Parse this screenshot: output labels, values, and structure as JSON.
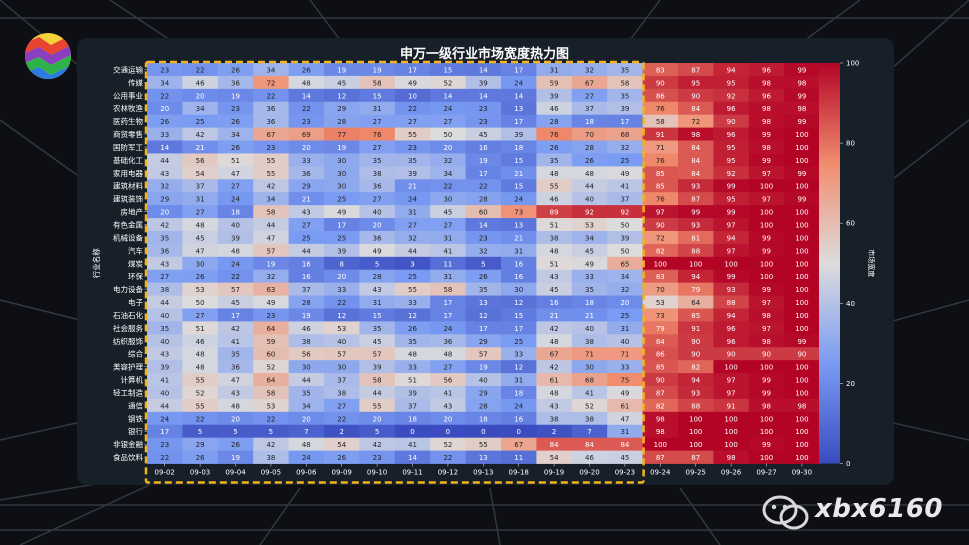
{
  "chart_data": {
    "type": "heatmap",
    "title": "申万一级行业市场宽度热力图",
    "ylabel": "行业名称",
    "colorbar_label": "市场宽度",
    "colorbar_ticks": [
      0,
      20,
      40,
      60,
      80,
      100
    ],
    "vmin": 0,
    "vmax": 100,
    "colors": {
      "low": "#3a4cc0",
      "mid": "#dddcdc",
      "high": "#b40426"
    },
    "columns": [
      "09-02",
      "09-03",
      "09-04",
      "09-05",
      "09-06",
      "09-09",
      "09-10",
      "09-11",
      "09-12",
      "09-13",
      "09-18",
      "09-19",
      "09-20",
      "09-23",
      "09-24",
      "09-25",
      "09-26",
      "09-27",
      "09-30"
    ],
    "rows": [
      "交通运输",
      "传媒",
      "公用事业",
      "农林牧渔",
      "医药生物",
      "商贸零售",
      "国防军工",
      "基础化工",
      "家用电器",
      "建筑材料",
      "建筑装饰",
      "房地产",
      "有色金属",
      "机械设备",
      "汽车",
      "煤炭",
      "环保",
      "电力设备",
      "电子",
      "石油石化",
      "社会服务",
      "纺织服饰",
      "综合",
      "美容护理",
      "计算机",
      "轻工制造",
      "通信",
      "钢铁",
      "银行",
      "非银金融",
      "食品饮料"
    ],
    "values": [
      [
        23,
        22,
        26,
        34,
        26,
        19,
        19,
        17,
        15,
        14,
        17,
        31,
        32,
        35,
        83,
        87,
        94,
        96,
        99
      ],
      [
        34,
        46,
        36,
        72,
        48,
        45,
        58,
        49,
        52,
        39,
        24,
        59,
        67,
        58,
        90,
        95,
        95,
        98,
        98
      ],
      [
        22,
        20,
        19,
        22,
        14,
        12,
        15,
        10,
        14,
        14,
        14,
        39,
        27,
        35,
        86,
        90,
        92,
        96,
        99
      ],
      [
        20,
        34,
        23,
        36,
        22,
        29,
        31,
        22,
        24,
        23,
        13,
        46,
        37,
        39,
        76,
        84,
        96,
        98,
        98
      ],
      [
        26,
        25,
        26,
        36,
        23,
        28,
        27,
        27,
        27,
        23,
        17,
        28,
        18,
        17,
        58,
        72,
        90,
        98,
        99
      ],
      [
        33,
        42,
        34,
        67,
        69,
        77,
        76,
        55,
        50,
        45,
        39,
        76,
        70,
        68,
        91,
        98,
        96,
        99,
        100
      ],
      [
        14,
        21,
        26,
        23,
        20,
        19,
        27,
        23,
        20,
        16,
        18,
        26,
        28,
        32,
        71,
        84,
        95,
        98,
        100
      ],
      [
        44,
        56,
        51,
        55,
        33,
        30,
        35,
        35,
        32,
        19,
        15,
        35,
        26,
        25,
        76,
        84,
        95,
        99,
        100
      ],
      [
        43,
        54,
        47,
        55,
        36,
        30,
        38,
        39,
        34,
        17,
        21,
        48,
        48,
        49,
        85,
        84,
        92,
        97,
        99
      ],
      [
        32,
        37,
        27,
        42,
        29,
        30,
        36,
        21,
        22,
        22,
        15,
        55,
        44,
        41,
        85,
        93,
        99,
        100,
        100
      ],
      [
        29,
        31,
        24,
        34,
        21,
        25,
        27,
        24,
        30,
        28,
        24,
        46,
        40,
        37,
        76,
        87,
        95,
        97,
        99
      ],
      [
        20,
        27,
        18,
        58,
        43,
        49,
        40,
        31,
        45,
        60,
        73,
        89,
        92,
        92,
        97,
        99,
        99,
        100,
        100
      ],
      [
        42,
        48,
        40,
        44,
        27,
        17,
        20,
        27,
        27,
        14,
        13,
        51,
        53,
        50,
        90,
        93,
        97,
        100,
        100
      ],
      [
        35,
        45,
        39,
        47,
        25,
        25,
        36,
        32,
        31,
        23,
        21,
        38,
        34,
        39,
        72,
        81,
        94,
        99,
        100
      ],
      [
        36,
        47,
        48,
        57,
        44,
        39,
        49,
        44,
        41,
        32,
        31,
        48,
        45,
        50,
        82,
        88,
        97,
        99,
        100
      ],
      [
        43,
        30,
        24,
        19,
        16,
        8,
        5,
        3,
        11,
        5,
        16,
        51,
        49,
        65,
        100,
        100,
        100,
        100,
        100
      ],
      [
        27,
        26,
        22,
        32,
        16,
        20,
        28,
        25,
        31,
        26,
        16,
        43,
        33,
        34,
        83,
        94,
        99,
        100,
        100
      ],
      [
        38,
        53,
        57,
        63,
        37,
        33,
        43,
        55,
        58,
        35,
        30,
        45,
        35,
        32,
        70,
        79,
        93,
        99,
        100
      ],
      [
        44,
        50,
        45,
        49,
        28,
        22,
        31,
        33,
        17,
        13,
        12,
        16,
        18,
        20,
        53,
        64,
        88,
        97,
        100
      ],
      [
        40,
        27,
        17,
        23,
        19,
        12,
        15,
        12,
        17,
        12,
        15,
        21,
        21,
        25,
        73,
        85,
        94,
        98,
        100
      ],
      [
        35,
        51,
        42,
        64,
        46,
        53,
        35,
        26,
        24,
        17,
        17,
        42,
        40,
        31,
        79,
        91,
        96,
        97,
        100
      ],
      [
        40,
        46,
        41,
        59,
        38,
        40,
        45,
        35,
        36,
        29,
        25,
        48,
        38,
        40,
        84,
        90,
        96,
        98,
        99
      ],
      [
        43,
        48,
        35,
        60,
        56,
        57,
        57,
        48,
        48,
        57,
        33,
        67,
        71,
        71,
        86,
        90,
        90,
        90,
        90
      ],
      [
        39,
        48,
        36,
        52,
        30,
        30,
        39,
        33,
        27,
        19,
        12,
        42,
        30,
        33,
        85,
        82,
        100,
        100,
        100
      ],
      [
        41,
        55,
        47,
        64,
        44,
        37,
        58,
        51,
        56,
        40,
        31,
        61,
        68,
        75,
        90,
        94,
        97,
        99,
        100
      ],
      [
        40,
        52,
        43,
        58,
        35,
        38,
        44,
        39,
        41,
        29,
        18,
        48,
        41,
        49,
        87,
        93,
        97,
        99,
        100
      ],
      [
        44,
        55,
        48,
        53,
        34,
        27,
        55,
        37,
        43,
        28,
        24,
        43,
        52,
        61,
        82,
        88,
        91,
        98,
        98
      ],
      [
        24,
        22,
        20,
        22,
        20,
        22,
        20,
        18,
        20,
        18,
        16,
        38,
        38,
        47,
        98,
        100,
        100,
        100,
        100
      ],
      [
        17,
        5,
        5,
        5,
        7,
        2,
        5,
        0,
        0,
        0,
        0,
        2,
        7,
        31,
        98,
        100,
        100,
        100,
        100
      ],
      [
        23,
        29,
        26,
        42,
        48,
        54,
        42,
        41,
        52,
        55,
        67,
        84,
        84,
        84,
        100,
        100,
        100,
        99,
        100
      ],
      [
        22,
        26,
        19,
        38,
        24,
        26,
        23,
        14,
        22,
        13,
        11,
        54,
        46,
        45,
        87,
        87,
        98,
        100,
        100
      ]
    ]
  }
}
